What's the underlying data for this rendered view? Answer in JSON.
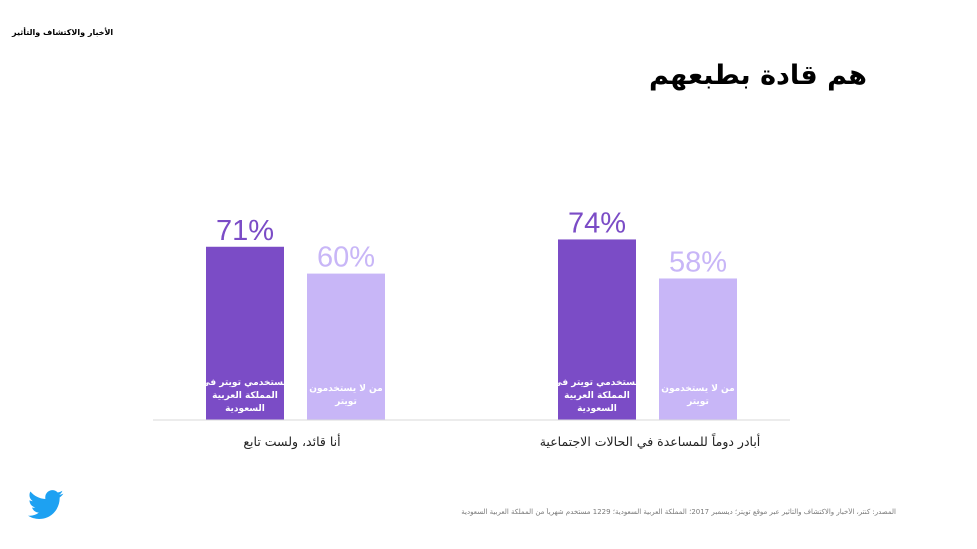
{
  "header": {
    "section_label": "الأخبار والاكتشاف والتأثير",
    "title": "هم قادة بطبعهم"
  },
  "footer": {
    "source": "المصدر: كنتر، الأخبار والاكتشاف والتأثير عبر موقع تويتر؛ ديسمبر 2017؛ المملكة العربية السعودية؛ 1229 مستخدم شهرياً من المملكة العربية السعودية",
    "logo_icon": "twitter-bird-icon"
  },
  "colors": {
    "users": "#7b4cc6",
    "non_users": "#c8b6f7",
    "axis": "#d9d9d9",
    "logo": "#1da1f2"
  },
  "chart_data": {
    "type": "bar",
    "title": "",
    "xlabel": "",
    "ylabel": "",
    "ylim": [
      0,
      100
    ],
    "grid": false,
    "legend": "none",
    "categories": [
      "أنا قائد، ولست تابع",
      "أبادر دوماً للمساعدة في الحالات الاجتماعية"
    ],
    "series": [
      {
        "name": "مستخدمي تويتر في المملكة العربية السعودية",
        "bar_label_lines": [
          "مستخدمي تويتر في",
          "المملكة العربية",
          "السعودية"
        ],
        "values": [
          71,
          74
        ],
        "value_labels": [
          "71%",
          "74%"
        ]
      },
      {
        "name": "من لا يستخدمون تويتر",
        "bar_label_lines": [
          "من لا يستخدمون",
          "تويتر"
        ],
        "values": [
          60,
          58
        ],
        "value_labels": [
          "60%",
          "58%"
        ]
      }
    ]
  }
}
